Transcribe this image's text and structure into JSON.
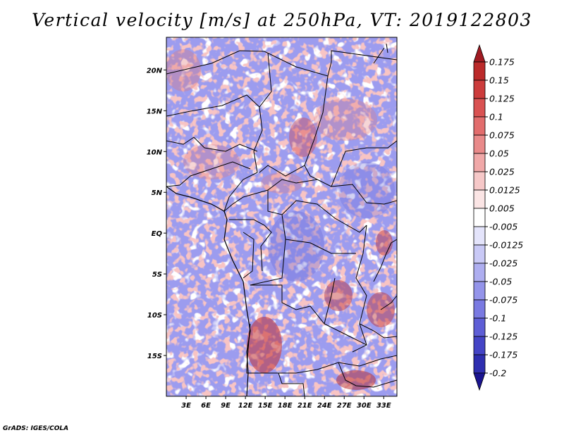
{
  "title": "Vertical velocity [m/s] at 250hPa, VT: 2019122803",
  "credit": "GrADS: IGES/COLA",
  "map": {
    "lat_range": [
      -20,
      24
    ],
    "lon_range": [
      0,
      35
    ],
    "lat_ticks": [
      {
        "value": 20,
        "label": "20N"
      },
      {
        "value": 15,
        "label": "15N"
      },
      {
        "value": 10,
        "label": "10N"
      },
      {
        "value": 5,
        "label": "5N"
      },
      {
        "value": 0,
        "label": "EQ"
      },
      {
        "value": -5,
        "label": "5S"
      },
      {
        "value": -10,
        "label": "10S"
      },
      {
        "value": -15,
        "label": "15S"
      }
    ],
    "lon_ticks": [
      {
        "value": 3,
        "label": "3E"
      },
      {
        "value": 6,
        "label": "6E"
      },
      {
        "value": 9,
        "label": "9E"
      },
      {
        "value": 12,
        "label": "12E"
      },
      {
        "value": 15,
        "label": "15E"
      },
      {
        "value": 18,
        "label": "18E"
      },
      {
        "value": 21,
        "label": "21E"
      },
      {
        "value": 24,
        "label": "24E"
      },
      {
        "value": 27,
        "label": "27E"
      },
      {
        "value": 30,
        "label": "30E"
      },
      {
        "value": 33,
        "label": "33E"
      }
    ]
  },
  "colorbar": {
    "labels": [
      "0.175",
      "0.15",
      "0.125",
      "0.1",
      "0.075",
      "0.05",
      "0.025",
      "0.0125",
      "0.005",
      "-0.005",
      "-0.0125",
      "-0.025",
      "-0.05",
      "-0.075",
      "-0.1",
      "-0.125",
      "-0.175",
      "-0.2"
    ],
    "colors": [
      "#a01a22",
      "#bb2a2a",
      "#cc3c3c",
      "#d95252",
      "#e26d6d",
      "#e98a8a",
      "#f0a8a8",
      "#f6c8c8",
      "#fbe5e5",
      "#ffffff",
      "#e4e4fb",
      "#c9c9f6",
      "#aeaef0",
      "#9494ea",
      "#7a7ae2",
      "#5e5ed6",
      "#4444c6",
      "#2e2eb0",
      "#1a1490"
    ]
  }
}
